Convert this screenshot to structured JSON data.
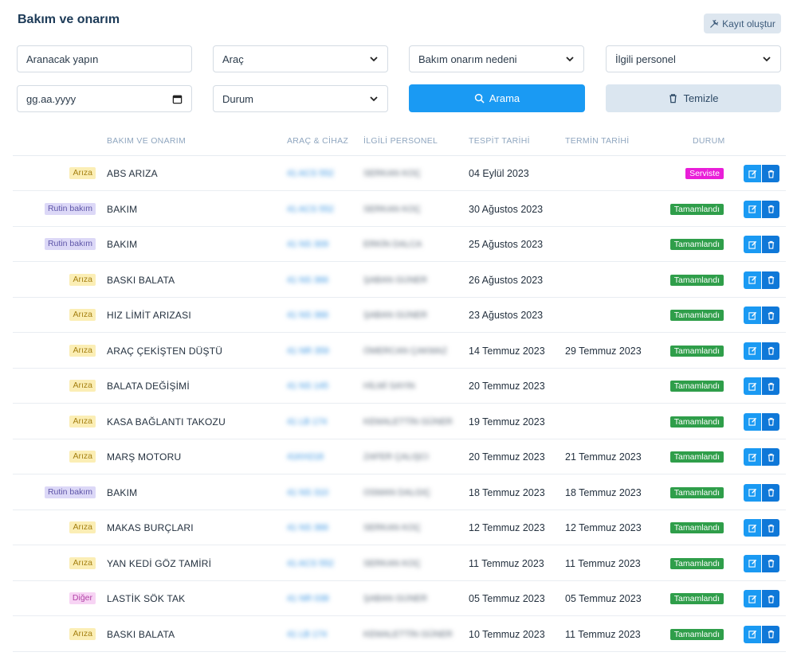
{
  "header": {
    "title": "Bakım ve onarım",
    "create_label": "Kayıt oluştur"
  },
  "filters": {
    "search_placeholder": "Aranacak yapın",
    "vehicle": "Araç",
    "reason": "Bakım onarım nedeni",
    "personnel": "İlgili personel",
    "date_placeholder": "gg.aa.yyyy",
    "status": "Durum",
    "search_label": "Arama",
    "clear_label": "Temizle"
  },
  "table": {
    "columns": [
      "BAKIM VE ONARIM",
      "ARAÇ & CİHAZ",
      "İLGİLİ PERSONEL",
      "TESPİT TARİHİ",
      "TERMİN TARİHİ",
      "DURUM"
    ],
    "rows": [
      {
        "type": "Arıza",
        "type_key": "ariza",
        "name": "ABS ARIZA",
        "plate": "41 ACS 552",
        "person": "SERKAN KOÇ",
        "detected": "04 Eylül 2023",
        "due": "",
        "status": "Serviste",
        "status_key": "servis"
      },
      {
        "type": "Rutin bakım",
        "type_key": "rutin",
        "name": "BAKIM",
        "plate": "41 ACS 552",
        "person": "SERKAN KOÇ",
        "detected": "30 Ağustos 2023",
        "due": "",
        "status": "Tamamlandı",
        "status_key": "tamam"
      },
      {
        "type": "Rutin bakım",
        "type_key": "rutin",
        "name": "BAKIM",
        "plate": "41 NS 309",
        "person": "ERKİN DALCA",
        "detected": "25 Ağustos 2023",
        "due": "",
        "status": "Tamamlandı",
        "status_key": "tamam"
      },
      {
        "type": "Arıza",
        "type_key": "ariza",
        "name": "BASKI BALATA",
        "plate": "41 NS 366",
        "person": "ŞABAN GÜNER",
        "detected": "26 Ağustos 2023",
        "due": "",
        "status": "Tamamlandı",
        "status_key": "tamam"
      },
      {
        "type": "Arıza",
        "type_key": "ariza",
        "name": "HIZ LİMİT ARIZASI",
        "plate": "41 NS 366",
        "person": "ŞABAN GÜNER",
        "detected": "23 Ağustos 2023",
        "due": "",
        "status": "Tamamlandı",
        "status_key": "tamam"
      },
      {
        "type": "Arıza",
        "type_key": "ariza",
        "name": "ARAÇ ÇEKİŞTEN DÜŞTÜ",
        "plate": "41 NR 359",
        "person": "ÖMERCAN ÇAKMAZ",
        "detected": "14 Temmuz 2023",
        "due": "29 Temmuz 2023",
        "status": "Tamamlandı",
        "status_key": "tamam"
      },
      {
        "type": "Arıza",
        "type_key": "ariza",
        "name": "BALATA DEĞİŞİMİ",
        "plate": "41 NS 145",
        "person": "HİLMİ SAYIN",
        "detected": "20 Temmuz 2023",
        "due": "",
        "status": "Tamamlandı",
        "status_key": "tamam"
      },
      {
        "type": "Arıza",
        "type_key": "ariza",
        "name": "KASA BAĞLANTI TAKOZU",
        "plate": "41 LB 174",
        "person": "KEMALETTİN GÜNER",
        "detected": "19 Temmuz 2023",
        "due": "",
        "status": "Tamamlandı",
        "status_key": "tamam"
      },
      {
        "type": "Arıza",
        "type_key": "ariza",
        "name": "MARŞ MOTORU",
        "plate": "41KH218",
        "person": "ZAFER ÇALIŞCI",
        "detected": "20 Temmuz 2023",
        "due": "21 Temmuz 2023",
        "status": "Tamamlandı",
        "status_key": "tamam"
      },
      {
        "type": "Rutin bakım",
        "type_key": "rutin",
        "name": "BAKIM",
        "plate": "41 NS 310",
        "person": "OSMAN DALGIÇ",
        "detected": "18 Temmuz 2023",
        "due": "18 Temmuz 2023",
        "status": "Tamamlandı",
        "status_key": "tamam"
      },
      {
        "type": "Arıza",
        "type_key": "ariza",
        "name": "MAKAS BURÇLARI",
        "plate": "41 NS 366",
        "person": "SERKAN KOÇ",
        "detected": "12 Temmuz 2023",
        "due": "12 Temmuz 2023",
        "status": "Tamamlandı",
        "status_key": "tamam"
      },
      {
        "type": "Arıza",
        "type_key": "ariza",
        "name": "YAN KEDİ GÖZ TAMİRİ",
        "plate": "41 ACS 552",
        "person": "SERKAN KOÇ",
        "detected": "11 Temmuz 2023",
        "due": "11 Temmuz 2023",
        "status": "Tamamlandı",
        "status_key": "tamam"
      },
      {
        "type": "Diğer",
        "type_key": "diger",
        "name": "LASTİK SÖK TAK",
        "plate": "41 NR 038",
        "person": "ŞABAN GÜNER",
        "detected": "05 Temmuz 2023",
        "due": "05 Temmuz 2023",
        "status": "Tamamlandı",
        "status_key": "tamam"
      },
      {
        "type": "Arıza",
        "type_key": "ariza",
        "name": "BASKI BALATA",
        "plate": "41 LB 174",
        "person": "KEMALETTİN GÜNER",
        "detected": "10 Temmuz 2023",
        "due": "11 Temmuz 2023",
        "status": "Tamamlandı",
        "status_key": "tamam"
      }
    ]
  },
  "icons": {
    "create": "tools-icon",
    "search": "search-icon",
    "clear": "trash-icon",
    "edit": "edit-icon",
    "delete": "trash-icon"
  },
  "colors": {
    "primary": "#1a9af3",
    "status_servis": "#e91ed8",
    "status_tamam": "#2f9e4a"
  }
}
